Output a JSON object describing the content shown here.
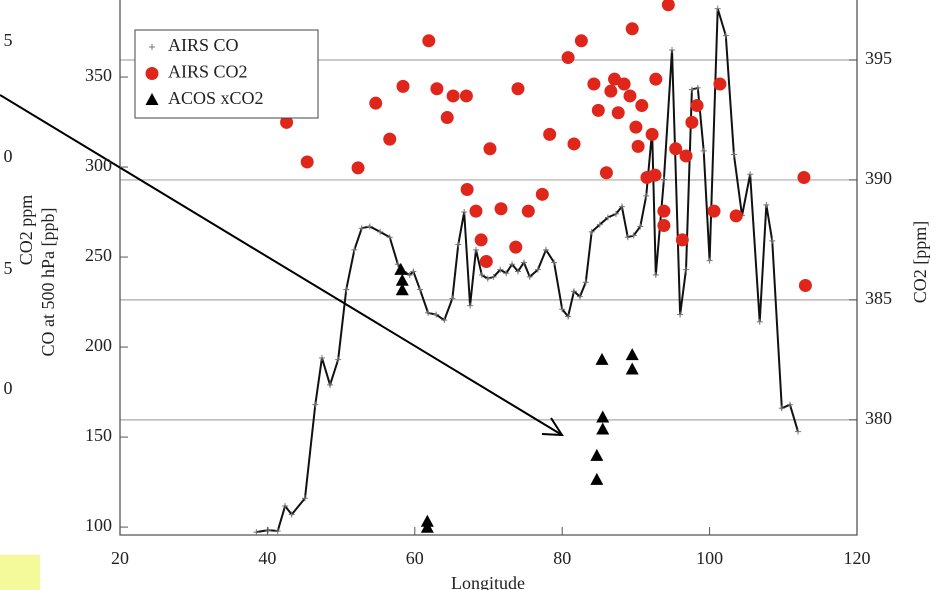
{
  "chart_data": {
    "type": "line",
    "xlabel": "Longitude",
    "ylabel": "CO at 500 hPa [ppb]",
    "y2label": "CO2 [ppm]",
    "overlap_label": "CO2 ppm",
    "overlap_tick_fragments": [
      "5",
      "0",
      "5",
      "0"
    ],
    "xlim": [
      20,
      120
    ],
    "xticks": [
      20,
      40,
      60,
      80,
      100,
      120
    ],
    "ylim": [
      95.6,
      392.8
    ],
    "yticks": [
      100,
      150,
      200,
      250,
      300,
      350
    ],
    "y2lim": [
      375.2,
      397.5
    ],
    "y2ticks": [
      380,
      385,
      390,
      395
    ],
    "grid": "y2",
    "legend": "upper left",
    "series": [
      {
        "name": "AIRS CO",
        "color": "#111111",
        "marker": "plus",
        "kind": "line",
        "x": [
          38.5,
          40.1,
          41.4,
          42.4,
          43.3,
          45.1,
          46.5,
          47.4,
          48.5,
          49.6,
          50.7,
          51.8,
          52.8,
          53.9,
          55.3,
          56.6,
          57.7,
          58.5,
          59.3,
          59.8,
          60.7,
          61.8,
          62.9,
          64,
          65.1,
          65.9,
          66.7,
          67.5,
          68.3,
          69.1,
          69.9,
          70.7,
          71.6,
          72.4,
          73.2,
          74,
          74.8,
          75.6,
          76.7,
          77.8,
          78.9,
          80,
          80.8,
          81.6,
          82.4,
          83.2,
          84,
          85.1,
          86.2,
          87.3,
          88.1,
          88.9,
          89.7,
          90.6,
          91.4,
          92.2,
          92.7,
          93.8,
          94.9,
          96,
          96.8,
          97.6,
          98.4,
          99.2,
          100,
          101.1,
          102.2,
          103.3,
          104.4,
          105.5,
          106.8,
          107.7,
          108.5,
          109.8,
          110.9,
          112
        ],
        "values": [
          97.2,
          98.3,
          97.8,
          111.7,
          107,
          116,
          168,
          194,
          179,
          193,
          232,
          254,
          266,
          267,
          264,
          261,
          246,
          242,
          240,
          242,
          232,
          219,
          218,
          215,
          227,
          257,
          275,
          223,
          254,
          240,
          238,
          239,
          243,
          241,
          246,
          242,
          247,
          239,
          243,
          254,
          247,
          221,
          217,
          231,
          228,
          236,
          264,
          268,
          272,
          274,
          278,
          261,
          262,
          267,
          284,
          320,
          240,
          293,
          365,
          218,
          243,
          343,
          344,
          309,
          248,
          388,
          373,
          307,
          273,
          296,
          214,
          279,
          259,
          166,
          168,
          153
        ]
      },
      {
        "name": "AIRS CO2",
        "color": "#e0261b",
        "marker": "circle",
        "kind": "scatter",
        "axis": "y2",
        "x": [
          36.3,
          42.6,
          43.3,
          45.4,
          52.3,
          54.7,
          56.6,
          58.4,
          61.9,
          63,
          64.4,
          65.2,
          67,
          67.1,
          68.3,
          69,
          69.7,
          70.2,
          71.7,
          73.7,
          74,
          75.4,
          77.3,
          78.3,
          80.8,
          81.6,
          82.6,
          84.3,
          84.9,
          86,
          86.6,
          87.1,
          87.6,
          88.4,
          89.2,
          89.5,
          90,
          90.3,
          90.8,
          91.5,
          92.2,
          92.6,
          92.7,
          93.8,
          93.8,
          94.4,
          95.4,
          96.3,
          96.8,
          97.6,
          98.3,
          100.6,
          101.4,
          103.6,
          112.8,
          113
        ],
        "values": [
          393.8,
          392.4,
          393,
          390.75,
          390.5,
          393.2,
          391.7,
          393.9,
          395.8,
          393.8,
          392.6,
          393.5,
          393.5,
          389.6,
          388.7,
          387.5,
          386.6,
          391.3,
          388.8,
          387.2,
          393.8,
          388.7,
          389.4,
          391.9,
          395.1,
          391.5,
          395.8,
          394,
          392.9,
          390.3,
          393.7,
          394.2,
          392.8,
          394,
          393.5,
          396.3,
          392.2,
          391.4,
          393.1,
          390.1,
          391.9,
          390.2,
          394.2,
          388.7,
          388.1,
          397.3,
          391.3,
          387.5,
          391,
          392.4,
          393.1,
          388.7,
          394,
          388.5,
          390.1,
          385.6
        ]
      },
      {
        "name": "ACOS xCO2",
        "color": "#000000",
        "marker": "triangle",
        "kind": "scatter",
        "axis": "y2",
        "x": [
          58.1,
          58.3,
          58.3,
          61.7,
          61.7,
          85.4,
          85.5,
          85.5,
          89.5,
          89.5,
          84.7,
          84.7
        ],
        "values": [
          386.25,
          385.8,
          385.4,
          375.75,
          375.5,
          382.5,
          380.1,
          379.6,
          382.7,
          382.1,
          378.5,
          377.5
        ]
      }
    ]
  }
}
